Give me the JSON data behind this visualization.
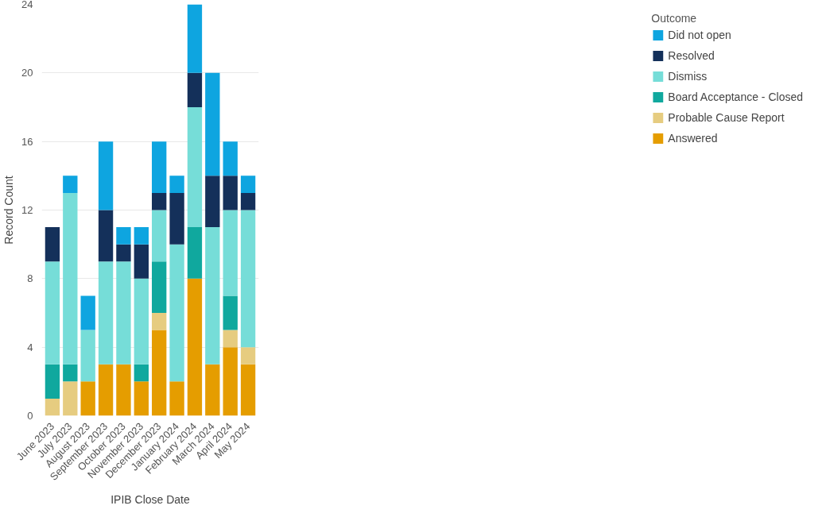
{
  "chart_data": {
    "type": "bar",
    "stacked": true,
    "xlabel": "IPIB Close Date",
    "ylabel": "Record Count",
    "legend_title": "Outcome",
    "legend": "top right",
    "grid": "y",
    "categories": [
      "June 2023",
      "July 2023",
      "August 2023",
      "September 2023",
      "October 2023",
      "November 2023",
      "December 2023",
      "January 2024",
      "February 2024",
      "March 2024",
      "April 2024",
      "May 2024"
    ],
    "ylim": [
      0,
      24
    ],
    "yticks": [
      0,
      4,
      8,
      12,
      16,
      20,
      24
    ],
    "series": [
      {
        "name": "Answered",
        "color": "#e59d00",
        "values": [
          0,
          0,
          2,
          3,
          3,
          2,
          5,
          2,
          8,
          3,
          4,
          3
        ]
      },
      {
        "name": "Probable Cause Report",
        "color": "#e6cc80",
        "values": [
          1,
          2,
          0,
          0,
          0,
          0,
          1,
          0,
          0,
          0,
          1,
          1
        ]
      },
      {
        "name": "Board Acceptance - Closed",
        "color": "#10a89e",
        "values": [
          2,
          1,
          0,
          0,
          0,
          1,
          3,
          0,
          3,
          0,
          2,
          0
        ]
      },
      {
        "name": "Dismiss",
        "color": "#76ddd8",
        "values": [
          6,
          10,
          3,
          6,
          6,
          5,
          3,
          8,
          7,
          8,
          5,
          8
        ]
      },
      {
        "name": "Resolved",
        "color": "#14305a",
        "values": [
          2,
          0,
          0,
          3,
          1,
          2,
          1,
          3,
          2,
          3,
          2,
          1
        ]
      },
      {
        "name": "Did not open",
        "color": "#0ea5e0",
        "values": [
          0,
          1,
          2,
          4,
          1,
          1,
          3,
          1,
          4,
          6,
          2,
          1
        ]
      }
    ]
  }
}
